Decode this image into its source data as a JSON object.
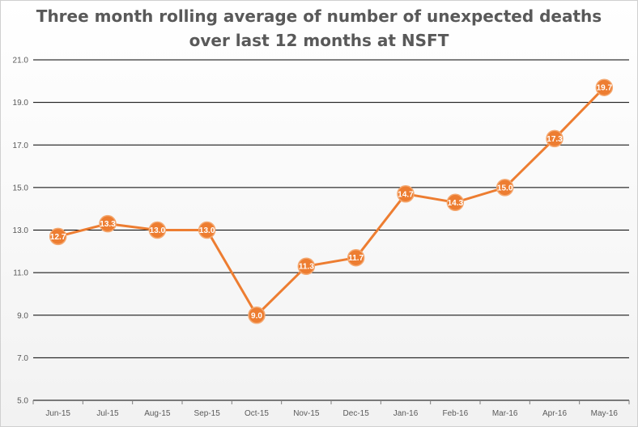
{
  "chart_data": {
    "type": "line",
    "title_line1": "Three month rolling average of number of unexpected deaths",
    "title_line2": "over last 12 months at NSFT",
    "categories": [
      "Jun-15",
      "Jul-15",
      "Aug-15",
      "Sep-15",
      "Oct-15",
      "Nov-15",
      "Dec-15",
      "Jan-16",
      "Feb-16",
      "Mar-16",
      "Apr-16",
      "May-16"
    ],
    "values": [
      12.7,
      13.3,
      13.0,
      13.0,
      9.0,
      11.3,
      11.7,
      14.7,
      14.3,
      15.0,
      17.3,
      19.7
    ],
    "data_labels": [
      "12.7",
      "13.3",
      "13.0",
      "13.0",
      "9.0",
      "11.3",
      "11.7",
      "14.7",
      "14.3",
      "15.0",
      "17.3",
      "19.7"
    ],
    "ylim": [
      5.0,
      21.0
    ],
    "yticks": [
      5.0,
      7.0,
      9.0,
      11.0,
      13.0,
      15.0,
      17.0,
      19.0,
      21.0
    ],
    "ytick_labels": [
      "5.0",
      "7.0",
      "9.0",
      "11.0",
      "13.0",
      "15.0",
      "17.0",
      "19.0",
      "21.0"
    ],
    "grid": true,
    "legend": "none",
    "line_color": "#ed7d31",
    "grid_color": "#000000"
  }
}
